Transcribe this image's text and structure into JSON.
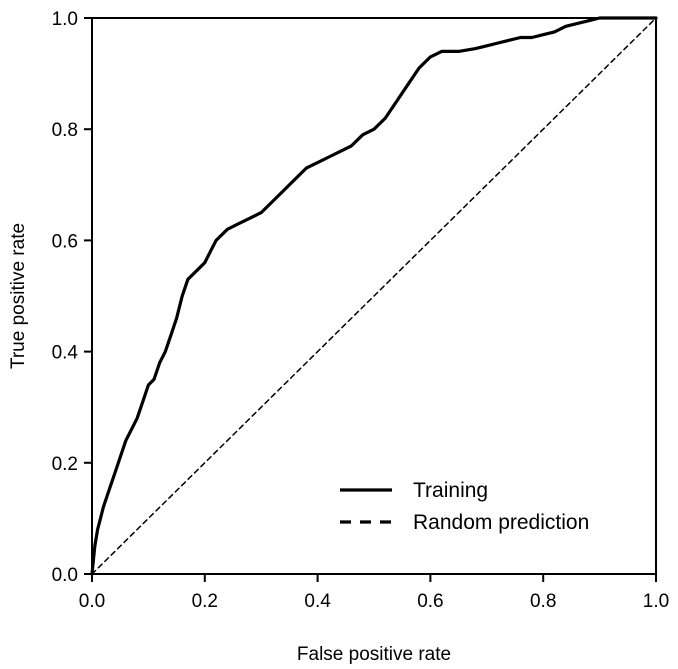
{
  "chart_data": {
    "type": "line",
    "title": "",
    "xlabel": "False positive rate",
    "ylabel": "True positive rate",
    "xlim": [
      0,
      1
    ],
    "ylim": [
      0,
      1
    ],
    "xticks": [
      "0.0",
      "0.2",
      "0.4",
      "0.6",
      "0.8",
      "1.0"
    ],
    "yticks": [
      "0.0",
      "0.2",
      "0.4",
      "0.6",
      "0.8",
      "1.0"
    ],
    "grid": false,
    "legend_position": "bottom-right",
    "series": [
      {
        "name": "Training",
        "style": "solid",
        "color": "#000000",
        "points": [
          [
            0.0,
            0.0
          ],
          [
            0.005,
            0.05
          ],
          [
            0.01,
            0.08
          ],
          [
            0.015,
            0.1
          ],
          [
            0.02,
            0.12
          ],
          [
            0.03,
            0.15
          ],
          [
            0.04,
            0.18
          ],
          [
            0.05,
            0.21
          ],
          [
            0.06,
            0.24
          ],
          [
            0.07,
            0.26
          ],
          [
            0.08,
            0.28
          ],
          [
            0.09,
            0.31
          ],
          [
            0.1,
            0.34
          ],
          [
            0.11,
            0.35
          ],
          [
            0.12,
            0.38
          ],
          [
            0.13,
            0.4
          ],
          [
            0.14,
            0.43
          ],
          [
            0.15,
            0.46
          ],
          [
            0.16,
            0.5
          ],
          [
            0.17,
            0.53
          ],
          [
            0.18,
            0.54
          ],
          [
            0.19,
            0.55
          ],
          [
            0.2,
            0.56
          ],
          [
            0.21,
            0.58
          ],
          [
            0.22,
            0.6
          ],
          [
            0.24,
            0.62
          ],
          [
            0.26,
            0.63
          ],
          [
            0.28,
            0.64
          ],
          [
            0.3,
            0.65
          ],
          [
            0.32,
            0.67
          ],
          [
            0.34,
            0.69
          ],
          [
            0.36,
            0.71
          ],
          [
            0.38,
            0.73
          ],
          [
            0.4,
            0.74
          ],
          [
            0.42,
            0.75
          ],
          [
            0.44,
            0.76
          ],
          [
            0.46,
            0.77
          ],
          [
            0.48,
            0.79
          ],
          [
            0.5,
            0.8
          ],
          [
            0.52,
            0.82
          ],
          [
            0.54,
            0.85
          ],
          [
            0.56,
            0.88
          ],
          [
            0.58,
            0.91
          ],
          [
            0.6,
            0.93
          ],
          [
            0.62,
            0.94
          ],
          [
            0.65,
            0.94
          ],
          [
            0.68,
            0.945
          ],
          [
            0.7,
            0.95
          ],
          [
            0.72,
            0.955
          ],
          [
            0.74,
            0.96
          ],
          [
            0.76,
            0.965
          ],
          [
            0.78,
            0.965
          ],
          [
            0.8,
            0.97
          ],
          [
            0.82,
            0.975
          ],
          [
            0.84,
            0.985
          ],
          [
            0.86,
            0.99
          ],
          [
            0.88,
            0.995
          ],
          [
            0.9,
            1.0
          ],
          [
            0.95,
            1.0
          ],
          [
            1.0,
            1.0
          ]
        ]
      },
      {
        "name": "Random prediction",
        "style": "dashed",
        "color": "#000000",
        "points": [
          [
            0.0,
            0.0
          ],
          [
            1.0,
            1.0
          ]
        ]
      }
    ]
  }
}
